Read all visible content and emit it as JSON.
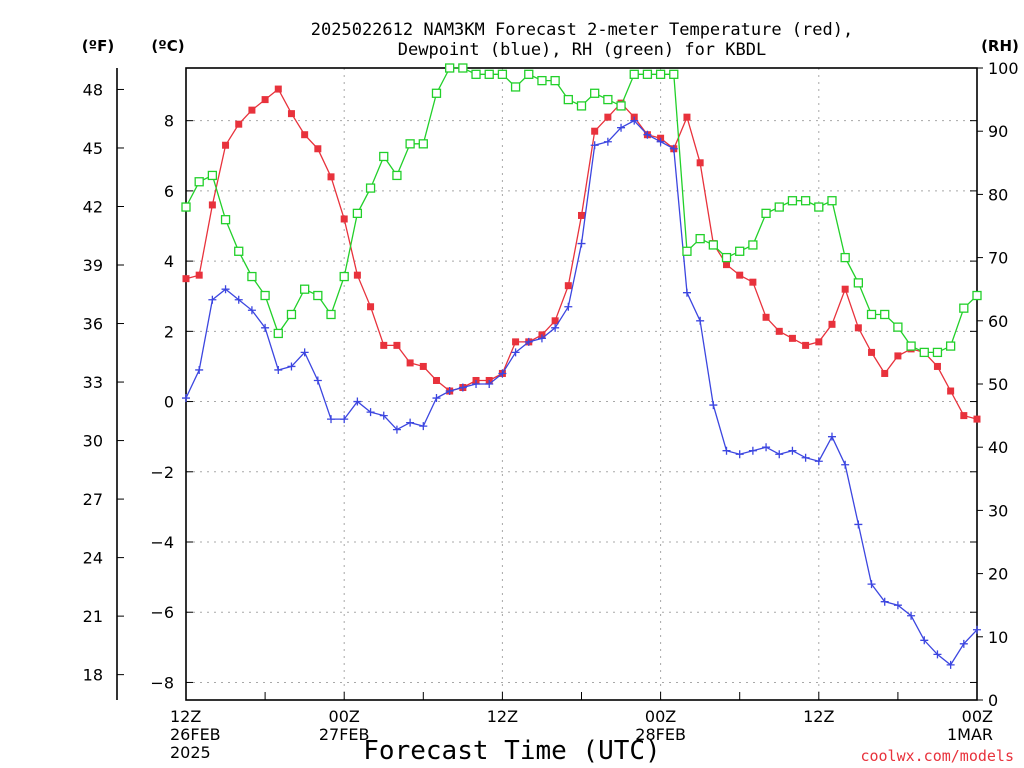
{
  "chart_data": {
    "type": "line",
    "title_line1": "2025022612 NAM3KM Forecast 2-meter Temperature (red),",
    "title_line2": "Dewpoint (blue), RH (green) for KBDL",
    "xlabel": "Forecast Time (UTC)",
    "credit": "coolwx.com/models",
    "left_outer_unit": "(ºF)",
    "left_inner_unit": "(ºC)",
    "right_unit": "(RH)",
    "x_ticks": [
      {
        "hour": 0,
        "lines": [
          "12Z",
          "26FEB",
          "2025"
        ]
      },
      {
        "hour": 12,
        "lines": [
          "00Z",
          "27FEB"
        ]
      },
      {
        "hour": 24,
        "lines": [
          "12Z"
        ]
      },
      {
        "hour": 36,
        "lines": [
          "00Z",
          "28FEB"
        ]
      },
      {
        "hour": 48,
        "lines": [
          "12Z"
        ]
      },
      {
        "hour": 60,
        "lines": [
          "00Z",
          "1MAR"
        ]
      }
    ],
    "xlim": [
      0,
      60
    ],
    "ylim_c": [
      -8.5,
      9.5
    ],
    "ylim_rh": [
      0,
      100
    ],
    "y_ticks_c": [
      -8,
      -6,
      -4,
      -2,
      0,
      2,
      4,
      6,
      8
    ],
    "y_ticks_f": [
      18,
      21,
      24,
      27,
      30,
      33,
      36,
      39,
      42,
      45,
      48
    ],
    "y_ticks_rh": [
      0,
      10,
      20,
      30,
      40,
      50,
      60,
      70,
      80,
      90,
      100
    ],
    "grid": true,
    "series": [
      {
        "color": "#e8323c",
        "marker": "filled-square",
        "axis": "celsius",
        "values": [
          3.5,
          3.6,
          5.6,
          7.3,
          7.9,
          8.3,
          8.6,
          8.9,
          8.2,
          7.6,
          7.2,
          6.4,
          5.2,
          3.6,
          2.7,
          1.6,
          1.6,
          1.1,
          1.0,
          0.6,
          0.3,
          0.4,
          0.6,
          0.6,
          0.8,
          1.7,
          1.7,
          1.9,
          2.3,
          3.3,
          5.3,
          7.7,
          8.1,
          8.5,
          8.1,
          7.6,
          7.5,
          7.2,
          8.1,
          6.8,
          4.5,
          3.9,
          3.6,
          3.4,
          2.4,
          2.0,
          1.8,
          1.6,
          1.7,
          2.2,
          3.2,
          2.1,
          1.4,
          0.8,
          1.3,
          1.5,
          1.4,
          1.0,
          0.3,
          -0.4,
          -0.5
        ]
      },
      {
        "color": "#3c46e0",
        "marker": "plus",
        "axis": "celsius",
        "values": [
          0.1,
          0.9,
          2.9,
          3.2,
          2.9,
          2.6,
          2.1,
          0.9,
          1.0,
          1.4,
          0.6,
          -0.5,
          -0.5,
          0.0,
          -0.3,
          -0.4,
          -0.8,
          -0.6,
          -0.7,
          0.1,
          0.3,
          0.4,
          0.5,
          0.5,
          0.8,
          1.4,
          1.7,
          1.8,
          2.1,
          2.7,
          4.5,
          7.3,
          7.4,
          7.8,
          8.0,
          7.6,
          7.4,
          7.2,
          3.1,
          2.3,
          -0.1,
          -1.4,
          -1.5,
          -1.4,
          -1.3,
          -1.5,
          -1.4,
          -1.6,
          -1.7,
          -1.0,
          -1.8,
          -3.5,
          -5.2,
          -5.7,
          -5.8,
          -6.1,
          -6.8,
          -7.2,
          -7.5,
          -6.9,
          -6.5
        ]
      },
      {
        "color": "#22d02a",
        "marker": "open-square",
        "axis": "rh",
        "values": [
          78,
          82,
          83,
          76,
          71,
          67,
          64,
          58,
          61,
          65,
          64,
          61,
          67,
          77,
          81,
          86,
          83,
          88,
          88,
          96,
          100,
          100,
          99,
          99,
          99,
          97,
          99,
          98,
          98,
          95,
          94,
          96,
          95,
          94,
          99,
          99,
          99,
          99,
          71,
          73,
          72,
          70,
          71,
          72,
          77,
          78,
          79,
          79,
          78,
          79,
          70,
          66,
          61,
          61,
          59,
          56,
          55,
          55,
          56,
          62,
          64
        ]
      }
    ]
  }
}
